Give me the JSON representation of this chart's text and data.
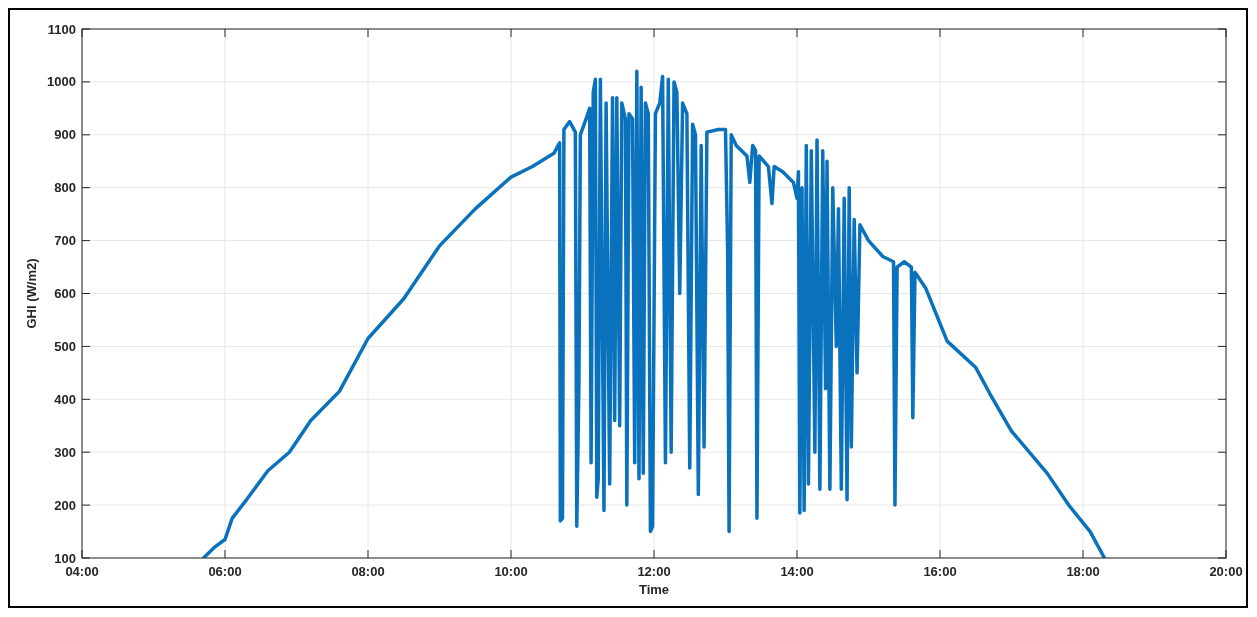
{
  "chart_data": {
    "type": "line",
    "xlabel": "Time",
    "ylabel": "GHI (W/m2)",
    "xlim": [
      4,
      20
    ],
    "ylim": [
      100,
      1100
    ],
    "xticks": [
      {
        "value": 4,
        "label": "04:00"
      },
      {
        "value": 6,
        "label": "06:00"
      },
      {
        "value": 8,
        "label": "08:00"
      },
      {
        "value": 10,
        "label": "10:00"
      },
      {
        "value": 12,
        "label": "12:00"
      },
      {
        "value": 14,
        "label": "14:00"
      },
      {
        "value": 16,
        "label": "16:00"
      },
      {
        "value": 18,
        "label": "18:00"
      },
      {
        "value": 20,
        "label": "20:00"
      }
    ],
    "yticks": [
      100,
      200,
      300,
      400,
      500,
      600,
      700,
      800,
      900,
      1000,
      1100
    ],
    "grid": true,
    "line_style": "solid",
    "series": [
      {
        "color": "#0a72bd",
        "x": [
          5.7,
          5.85,
          6.0,
          6.1,
          6.3,
          6.6,
          6.9,
          7.2,
          7.6,
          8.0,
          8.5,
          9.0,
          9.5,
          10.0,
          10.3,
          10.6,
          10.68,
          10.69,
          10.72,
          10.74,
          10.82,
          10.9,
          10.92,
          10.95,
          10.97,
          11.05,
          11.1,
          11.12,
          11.15,
          11.18,
          11.2,
          11.22,
          11.25,
          11.3,
          11.33,
          11.38,
          11.42,
          11.45,
          11.48,
          11.52,
          11.55,
          11.6,
          11.62,
          11.65,
          11.7,
          11.73,
          11.76,
          11.79,
          11.82,
          11.85,
          11.88,
          11.92,
          11.95,
          11.98,
          12.02,
          12.08,
          12.12,
          12.16,
          12.2,
          12.24,
          12.28,
          12.32,
          12.36,
          12.4,
          12.46,
          12.5,
          12.54,
          12.58,
          12.62,
          12.66,
          12.7,
          12.74,
          12.9,
          13.0,
          13.03,
          13.05,
          13.08,
          13.15,
          13.3,
          13.34,
          13.38,
          13.42,
          13.44,
          13.47,
          13.6,
          13.65,
          13.68,
          13.8,
          13.95,
          14.0,
          14.02,
          14.04,
          14.07,
          14.1,
          14.13,
          14.16,
          14.2,
          14.25,
          14.28,
          14.32,
          14.36,
          14.4,
          14.42,
          14.46,
          14.5,
          14.55,
          14.58,
          14.62,
          14.66,
          14.7,
          14.73,
          14.76,
          14.8,
          14.84,
          14.88,
          15.0,
          15.2,
          15.35,
          15.37,
          15.4,
          15.5,
          15.6,
          15.62,
          15.65,
          15.8,
          15.95,
          16.1,
          16.5,
          16.7,
          17.0,
          17.5,
          17.8,
          18.1,
          18.3
        ],
        "values": [
          100,
          120,
          135,
          175,
          210,
          265,
          300,
          360,
          415,
          515,
          590,
          690,
          760,
          820,
          840,
          865,
          885,
          170,
          175,
          910,
          925,
          905,
          160,
          430,
          900,
          930,
          950,
          280,
          980,
          1005,
          215,
          250,
          1005,
          190,
          960,
          240,
          970,
          360,
          970,
          350,
          960,
          930,
          200,
          940,
          930,
          280,
          1020,
          250,
          990,
          260,
          960,
          940,
          150,
          160,
          940,
          960,
          1010,
          280,
          1005,
          300,
          1000,
          980,
          600,
          960,
          940,
          270,
          920,
          900,
          220,
          880,
          310,
          905,
          910,
          910,
          680,
          150,
          900,
          880,
          860,
          810,
          880,
          870,
          175,
          860,
          840,
          770,
          840,
          830,
          810,
          780,
          830,
          185,
          800,
          190,
          880,
          240,
          870,
          300,
          890,
          230,
          870,
          420,
          850,
          230,
          800,
          500,
          760,
          230,
          780,
          210,
          800,
          310,
          740,
          450,
          730,
          700,
          670,
          660,
          200,
          650,
          660,
          650,
          365,
          640,
          610,
          560,
          510,
          460,
          410,
          340,
          260,
          200,
          150,
          100
        ]
      }
    ]
  }
}
